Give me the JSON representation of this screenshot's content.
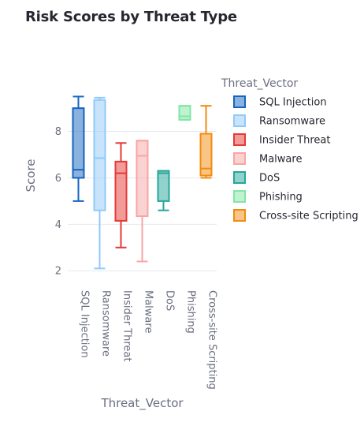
{
  "chart_data": {
    "type": "box",
    "title": "Risk Scores by Threat Type",
    "xlabel": "Threat_Vector",
    "ylabel": "Score",
    "ylim": [
      1.6,
      10.6
    ],
    "yticks": [
      2,
      4,
      6,
      8
    ],
    "grid": true,
    "legend": {
      "title": "Threat_Vector",
      "placement": "right"
    },
    "categories": [
      "SQL Injection",
      "Ransomware",
      "Insider Threat",
      "Malware",
      "DoS",
      "Phishing",
      "Cross-site Scripting"
    ],
    "series": [
      {
        "name": "SQL Injection",
        "color": "#1565c0",
        "min": 5.0,
        "q1": 6.0,
        "median": 6.35,
        "q3": 9.0,
        "max": 9.5
      },
      {
        "name": "Ransomware",
        "color": "#90caf9",
        "min": 2.1,
        "q1": 4.6,
        "median": 6.85,
        "q3": 9.35,
        "max": 9.45
      },
      {
        "name": "Insider Threat",
        "color": "#e53935",
        "min": 3.0,
        "q1": 4.15,
        "median": 6.2,
        "q3": 6.7,
        "max": 7.5
      },
      {
        "name": "Malware",
        "color": "#f8a5a5",
        "min": 2.4,
        "q1": 4.35,
        "median": 6.95,
        "q3": 7.6,
        "max": 7.6
      },
      {
        "name": "DoS",
        "color": "#26a69a",
        "min": 4.6,
        "q1": 5.0,
        "median": 6.2,
        "q3": 6.3,
        "max": 6.3
      },
      {
        "name": "Phishing",
        "color": "#81e6a5",
        "min": 8.5,
        "q1": 8.5,
        "median": 8.65,
        "q3": 9.1,
        "max": 9.1
      },
      {
        "name": "Cross-site Scripting",
        "color": "#f28c0f",
        "min": 6.0,
        "q1": 6.1,
        "median": 6.4,
        "q3": 7.9,
        "max": 9.1
      }
    ]
  }
}
